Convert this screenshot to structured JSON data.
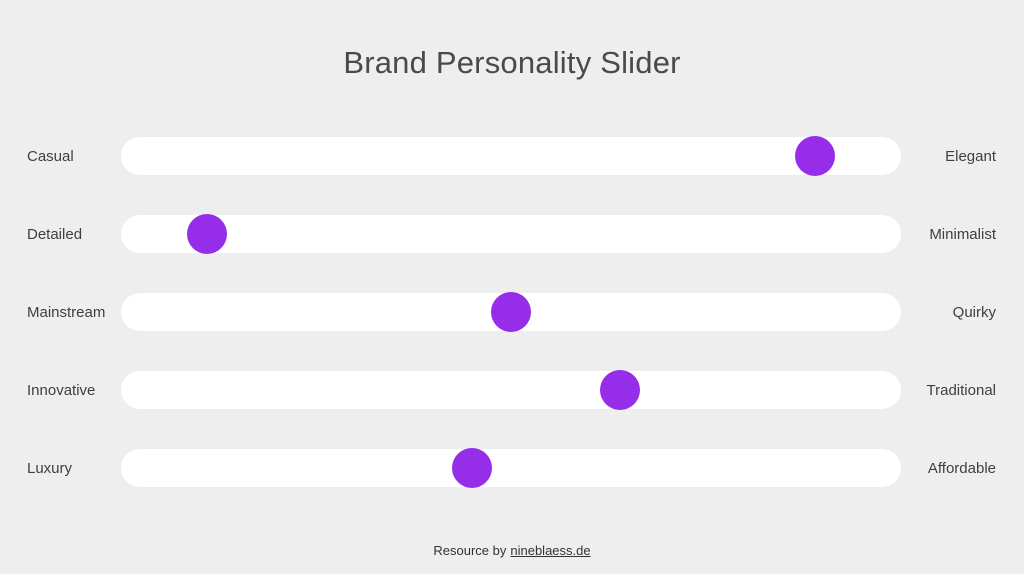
{
  "page": {
    "title": "Brand Personality Slider"
  },
  "colors": {
    "background": "#EEEEEE",
    "track": "#FFFFFF",
    "handle_accent": "#962DE8",
    "title_text": "#4A4A4A",
    "label_text": "#3F3F3F"
  },
  "sliders": [
    {
      "left_label": "Casual",
      "right_label": "Elegant",
      "value": 89
    },
    {
      "left_label": "Detailed",
      "right_label": "Minimalist",
      "value": 11
    },
    {
      "left_label": "Mainstream",
      "right_label": "Quirky",
      "value": 50
    },
    {
      "left_label": "Innovative",
      "right_label": "Traditional",
      "value": 64
    },
    {
      "left_label": "Luxury",
      "right_label": "Affordable",
      "value": 45
    }
  ],
  "footer": {
    "text": "Resource by",
    "link_label": "nineblaess.de"
  }
}
